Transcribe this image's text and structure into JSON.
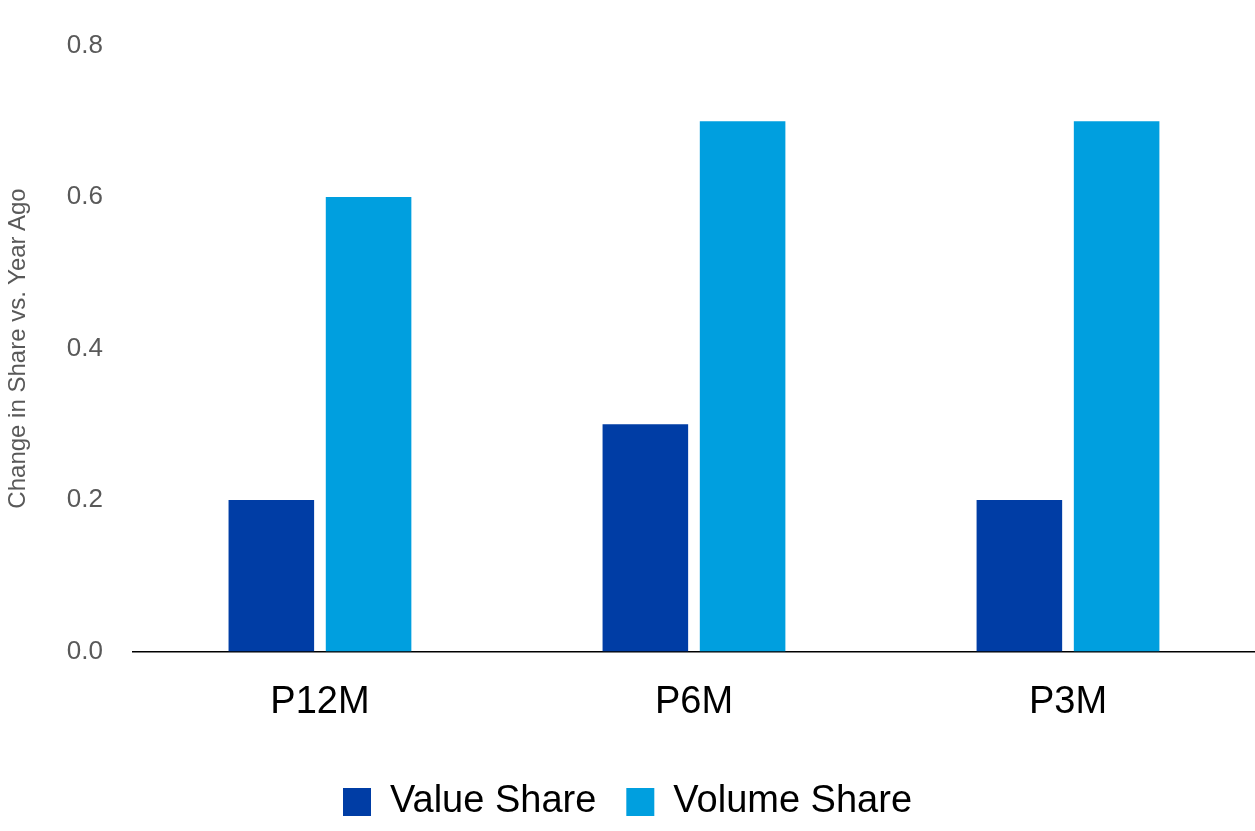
{
  "chart_data": {
    "type": "bar",
    "ylabel": "Change in Share vs. Year Ago",
    "categories": [
      "P12M",
      "P6M",
      "P3M"
    ],
    "series": [
      {
        "name": "Value Share",
        "color": "#003da5",
        "values": [
          0.2,
          0.3,
          0.2
        ]
      },
      {
        "name": "Volume Share",
        "color": "#009fdf",
        "values": [
          0.6,
          0.7,
          0.7
        ]
      }
    ],
    "ylim": [
      0,
      0.8
    ],
    "yticks": [
      {
        "value": 0,
        "label": "0.0"
      },
      0.2,
      0.4,
      0.6,
      0.8
    ],
    "grid": false,
    "legend": "bottom"
  }
}
